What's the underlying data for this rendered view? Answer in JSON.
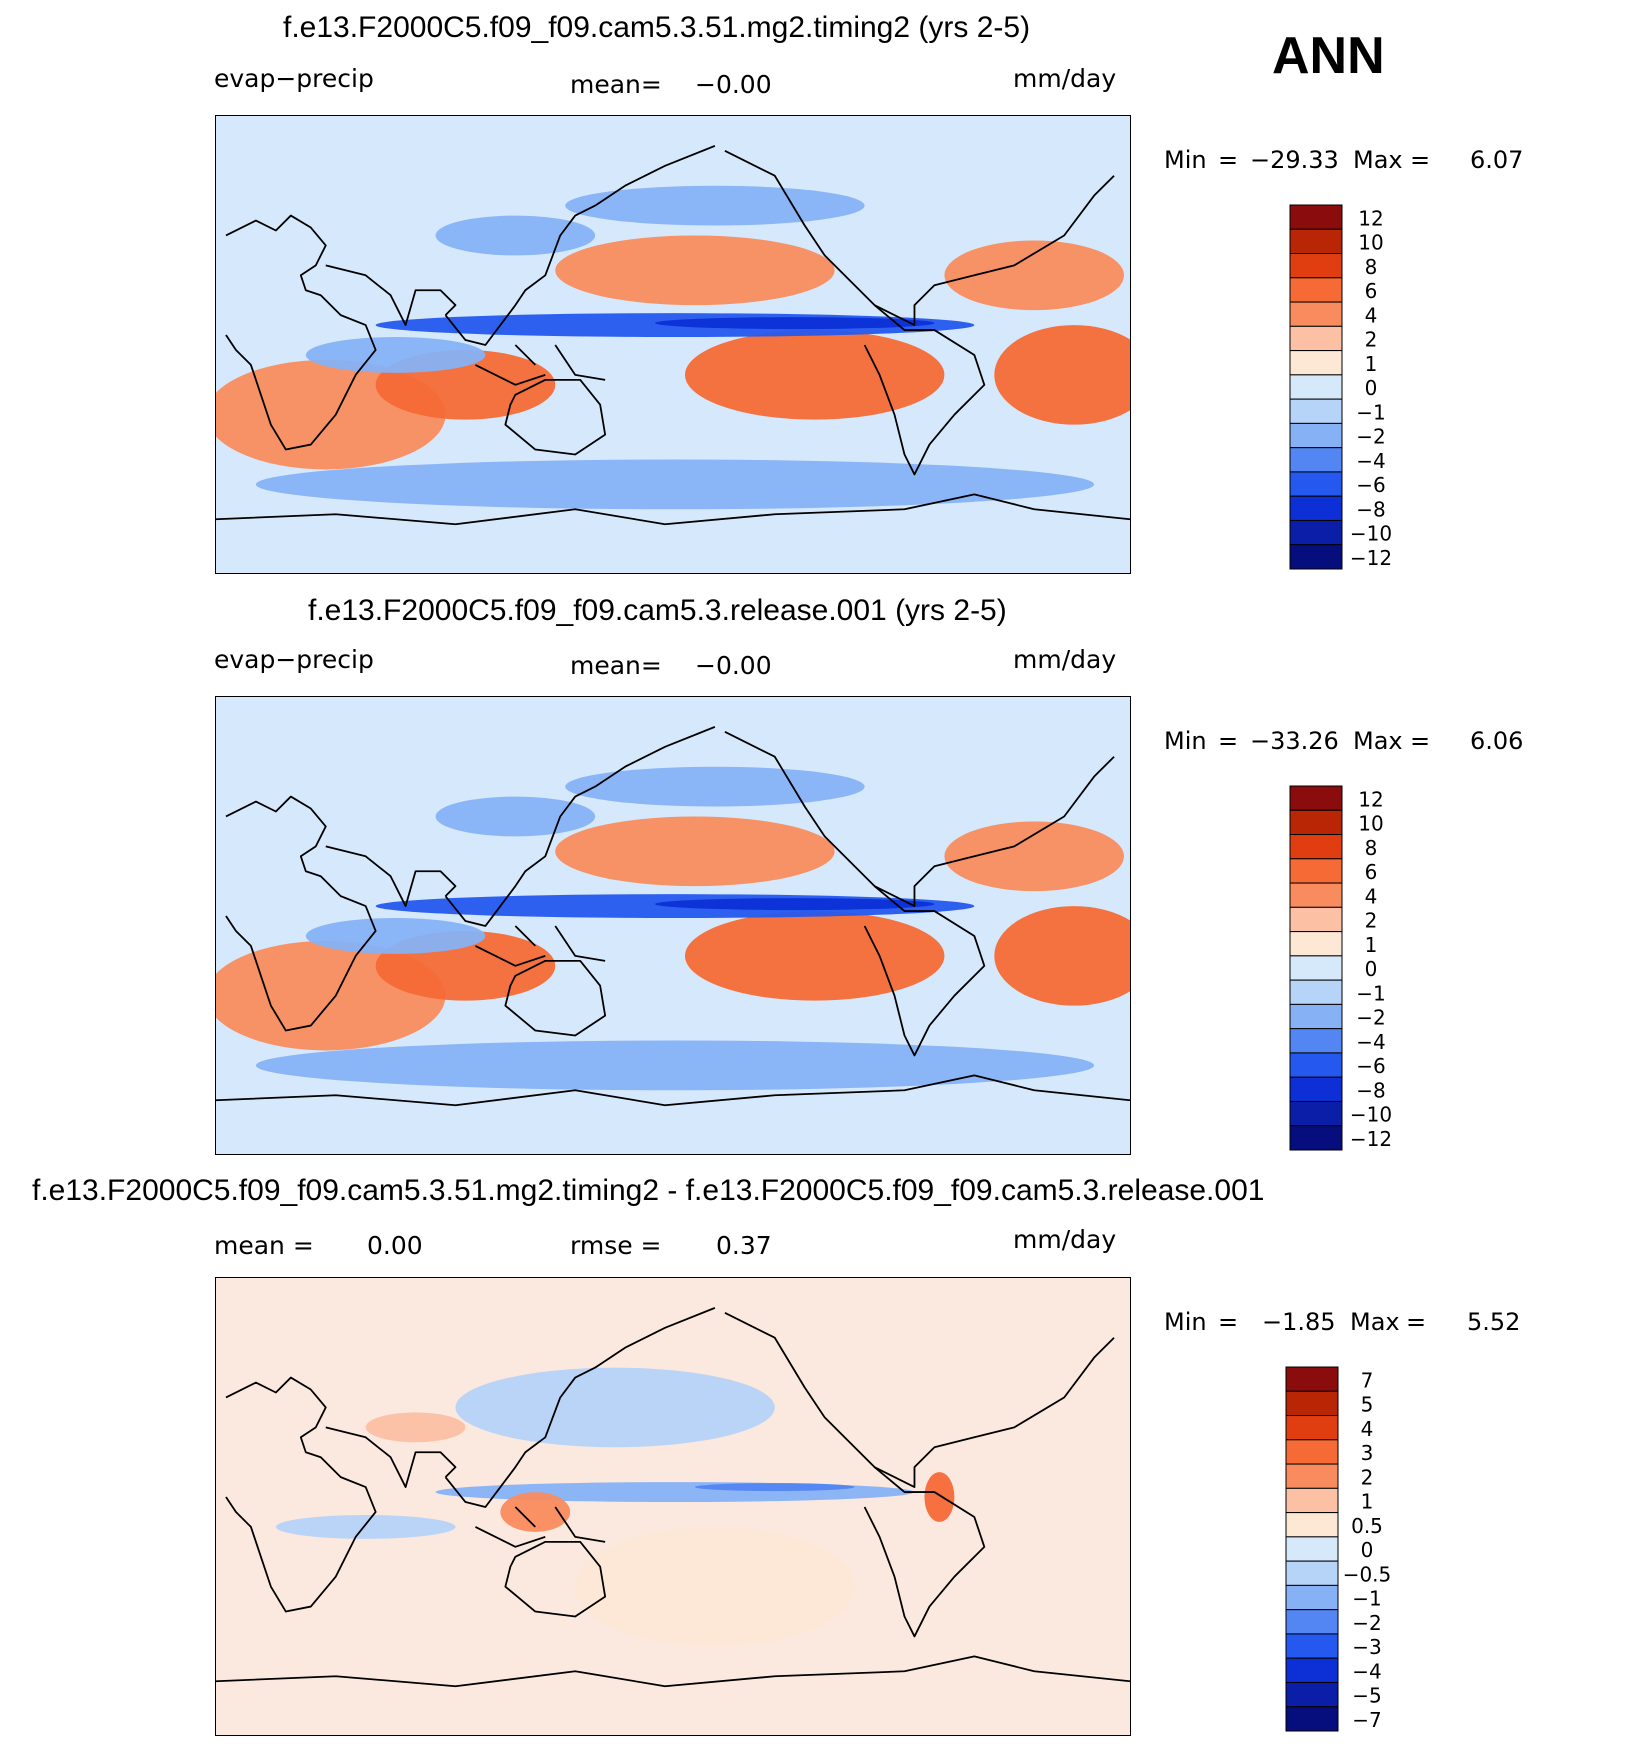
{
  "header": {
    "season": "ANN"
  },
  "panels": [
    {
      "title": "f.e13.F2000C5.f09_f09.cam5.3.51.mg2.timing2 (yrs 2-5)",
      "left_label": "evap−precip",
      "center_label": "mean=",
      "center_value": "−0.00",
      "right_label": "mm/day",
      "min_label": "Min",
      "eq": "=",
      "min_value": "−29.33",
      "max_label": "Max",
      "max_value": "6.07",
      "colorbar_labels": [
        "12",
        "10",
        "8",
        "6",
        "4",
        "2",
        "1",
        "0",
        "−1",
        "−2",
        "−4",
        "−6",
        "−8",
        "−10",
        "−12"
      ]
    },
    {
      "title": "f.e13.F2000C5.f09_f09.cam5.3.release.001 (yrs 2-5)",
      "left_label": "evap−precip",
      "center_label": "mean=",
      "center_value": "−0.00",
      "right_label": "mm/day",
      "min_label": "Min",
      "eq": "=",
      "min_value": "−33.26",
      "max_label": "Max",
      "max_value": "6.06",
      "colorbar_labels": [
        "12",
        "10",
        "8",
        "6",
        "4",
        "2",
        "1",
        "0",
        "−1",
        "−2",
        "−4",
        "−6",
        "−8",
        "−10",
        "−12"
      ]
    },
    {
      "title": "f.e13.F2000C5.f09_f09.cam5.3.51.mg2.timing2 - f.e13.F2000C5.f09_f09.cam5.3.release.001",
      "left_label": "mean =",
      "left_value": "0.00",
      "center_label": "rmse =",
      "center_value": "0.37",
      "right_label": "mm/day",
      "min_label": "Min",
      "eq": "=",
      "min_value": "−1.85",
      "max_label": "Max",
      "max_value": "5.52",
      "colorbar_labels": [
        "7",
        "5",
        "4",
        "3",
        "2",
        "1",
        "0.5",
        "0",
        "−0.5",
        "−1",
        "−2",
        "−3",
        "−4",
        "−5",
        "−7"
      ]
    }
  ],
  "colors": {
    "palette": [
      "#8a0c0c",
      "#b82606",
      "#e03e10",
      "#f66a36",
      "#f98c5e",
      "#fcc0a4",
      "#fde7d5",
      "#d6e9fb",
      "#b6d3f8",
      "#86b2f5",
      "#5386f3",
      "#2458ee",
      "#0c30d6",
      "#0a1ea8",
      "#060e7e"
    ],
    "land": "#d8e9f8",
    "ocean_neutral": "#d6e8fb",
    "diff_land": "#fbe9df"
  },
  "chart_data": [
    {
      "type": "heatmap",
      "title": "f.e13.F2000C5.f09_f09.cam5.3.51.mg2.timing2 (yrs 2-5)",
      "variable": "evap−precip",
      "units": "mm/day",
      "mean": -0.0,
      "min": -29.33,
      "max": 6.07,
      "contour_levels": [
        -12,
        -10,
        -8,
        -6,
        -4,
        -2,
        -1,
        0,
        1,
        2,
        4,
        6,
        8,
        10,
        12
      ]
    },
    {
      "type": "heatmap",
      "title": "f.e13.F2000C5.f09_f09.cam5.3.release.001 (yrs 2-5)",
      "variable": "evap−precip",
      "units": "mm/day",
      "mean": -0.0,
      "min": -33.26,
      "max": 6.06,
      "contour_levels": [
        -12,
        -10,
        -8,
        -6,
        -4,
        -2,
        -1,
        0,
        1,
        2,
        4,
        6,
        8,
        10,
        12
      ]
    },
    {
      "type": "heatmap",
      "title": "f.e13.F2000C5.f09_f09.cam5.3.51.mg2.timing2 - f.e13.F2000C5.f09_f09.cam5.3.release.001",
      "units": "mm/day",
      "mean": 0.0,
      "rmse": 0.37,
      "min": -1.85,
      "max": 5.52,
      "contour_levels": [
        -7,
        -5,
        -4,
        -3,
        -2,
        -1,
        -0.5,
        0,
        0.5,
        1,
        2,
        3,
        4,
        5,
        7
      ]
    }
  ]
}
